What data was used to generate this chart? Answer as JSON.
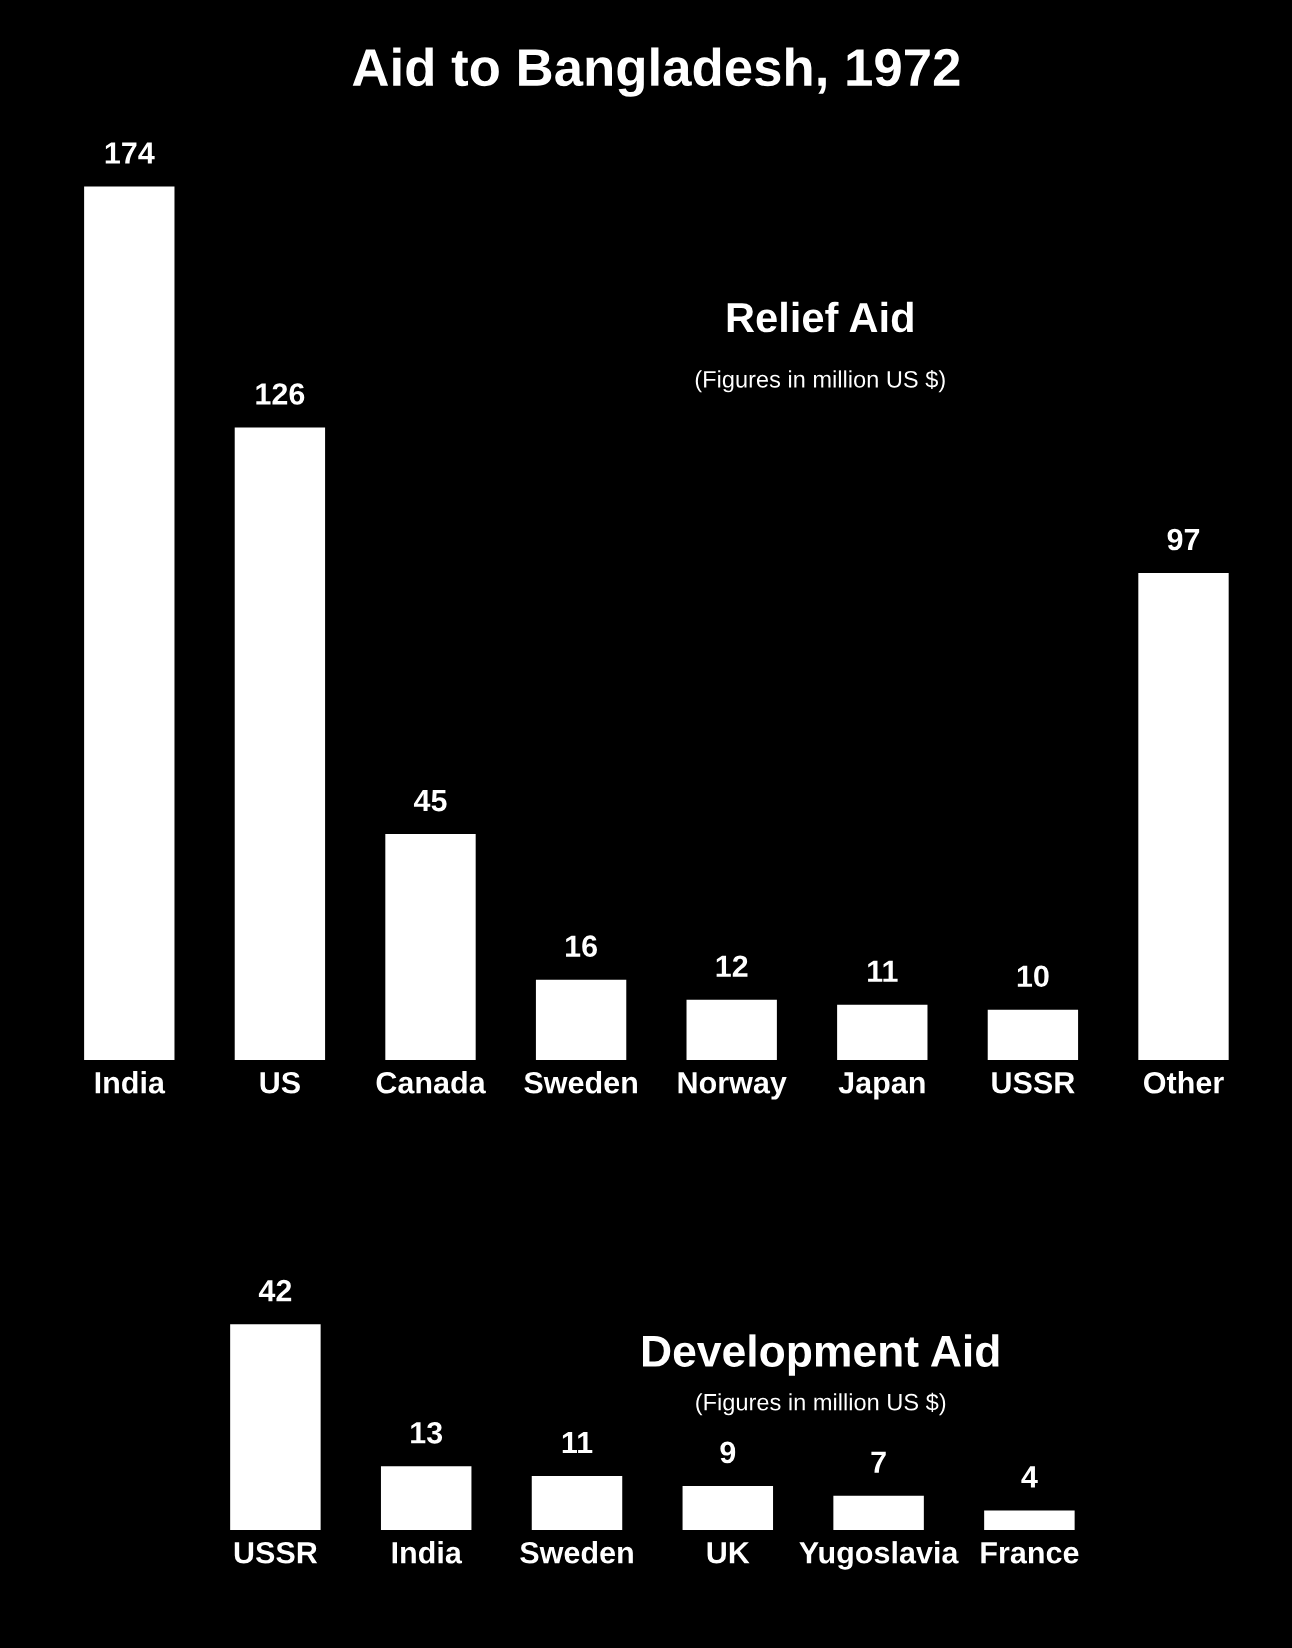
{
  "chart_data": [
    {
      "type": "bar",
      "title": "Aid to Bangladesh, 1972",
      "subtitle": "Relief Aid",
      "annotations": [
        "(Figures in million US $)"
      ],
      "categories": [
        "India",
        "US",
        "Canada",
        "Sweden",
        "Norway",
        "Japan",
        "USSR",
        "Other"
      ],
      "values": [
        174,
        126,
        45,
        16,
        12,
        11,
        10,
        97
      ],
      "color": "#ffffff",
      "data_labels": true,
      "grid": false,
      "legend": false
    },
    {
      "type": "bar",
      "title": "Development Aid",
      "subtitle": "(Figures in million US $)",
      "categories": [
        "USSR",
        "India",
        "Sweden",
        "UK",
        "Yugoslavia",
        "France"
      ],
      "values": [
        42,
        13,
        11,
        9,
        7,
        4
      ],
      "color": "#ffffff",
      "data_labels": true,
      "grid": false,
      "legend": false
    }
  ]
}
